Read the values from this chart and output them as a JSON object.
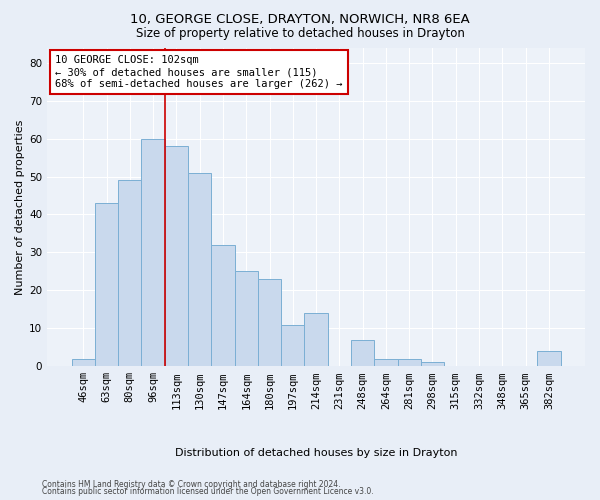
{
  "title1": "10, GEORGE CLOSE, DRAYTON, NORWICH, NR8 6EA",
  "title2": "Size of property relative to detached houses in Drayton",
  "xlabel": "Distribution of detached houses by size in Drayton",
  "ylabel": "Number of detached properties",
  "categories": [
    "46sqm",
    "63sqm",
    "80sqm",
    "96sqm",
    "113sqm",
    "130sqm",
    "147sqm",
    "164sqm",
    "180sqm",
    "197sqm",
    "214sqm",
    "231sqm",
    "248sqm",
    "264sqm",
    "281sqm",
    "298sqm",
    "315sqm",
    "332sqm",
    "348sqm",
    "365sqm",
    "382sqm"
  ],
  "values": [
    2,
    43,
    49,
    60,
    58,
    51,
    32,
    25,
    23,
    11,
    14,
    0,
    7,
    2,
    2,
    1,
    0,
    0,
    0,
    0,
    4
  ],
  "bar_color": "#c9d9ed",
  "bar_edge_color": "#7bafd4",
  "annotation_text": "10 GEORGE CLOSE: 102sqm\n← 30% of detached houses are smaller (115)\n68% of semi-detached houses are larger (262) →",
  "vline_x": 3.5,
  "vline_color": "#cc0000",
  "annotation_box_color": "#ffffff",
  "annotation_box_edge_color": "#cc0000",
  "ylim": [
    0,
    84
  ],
  "yticks": [
    0,
    10,
    20,
    30,
    40,
    50,
    60,
    70,
    80
  ],
  "footer1": "Contains HM Land Registry data © Crown copyright and database right 2024.",
  "footer2": "Contains public sector information licensed under the Open Government Licence v3.0.",
  "background_color": "#e8eef7",
  "plot_bg_color": "#edf2f9",
  "title1_fontsize": 9.5,
  "title2_fontsize": 8.5,
  "xlabel_fontsize": 8,
  "ylabel_fontsize": 8,
  "tick_fontsize": 7.5,
  "annot_fontsize": 7.5,
  "footer_fontsize": 5.5
}
